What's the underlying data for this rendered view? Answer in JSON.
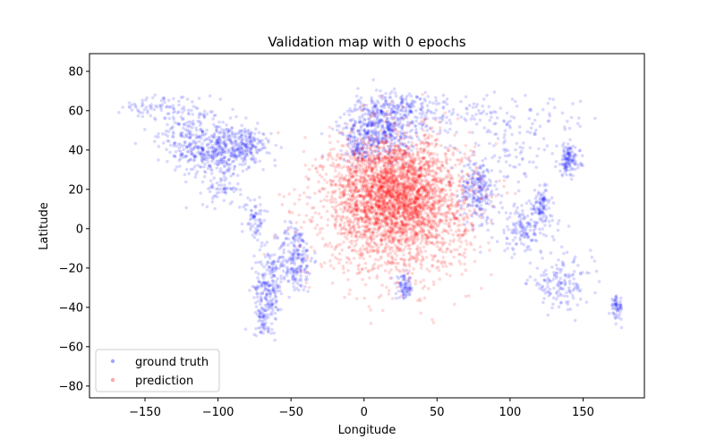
{
  "chart_data": {
    "type": "scatter",
    "title": "Validation map with 0 epochs",
    "xlabel": "Longitude",
    "ylabel": "Latitude",
    "xlim": [
      -188,
      192
    ],
    "ylim": [
      -86,
      89
    ],
    "xticks": [
      -150,
      -100,
      -50,
      0,
      50,
      100,
      150
    ],
    "yticks": [
      -80,
      -60,
      -40,
      -20,
      0,
      20,
      40,
      60,
      80
    ],
    "grid": false,
    "legend_position": "lower-left",
    "series": [
      {
        "name": "ground truth",
        "color": "#0000ff",
        "alpha": 0.15,
        "description_points": "approximate cluster representation of ground-truth locations (world landmasses)",
        "clusters": [
          {
            "cx": -100,
            "cy": 40,
            "sx": 14,
            "sy": 7,
            "n": 420
          },
          {
            "cx": -120,
            "cy": 50,
            "sx": 10,
            "sy": 8,
            "n": 150
          },
          {
            "cx": -145,
            "cy": 62,
            "sx": 10,
            "sy": 3,
            "n": 60
          },
          {
            "cx": -80,
            "cy": 42,
            "sx": 8,
            "sy": 4,
            "n": 120
          },
          {
            "cx": -98,
            "cy": 20,
            "sx": 6,
            "sy": 4,
            "n": 60
          },
          {
            "cx": -75,
            "cy": 5,
            "sx": 4,
            "sy": 6,
            "n": 70
          },
          {
            "cx": -47,
            "cy": -15,
            "sx": 6,
            "sy": 9,
            "n": 220
          },
          {
            "cx": -65,
            "cy": -30,
            "sx": 5,
            "sy": 10,
            "n": 220
          },
          {
            "cx": -70,
            "cy": -45,
            "sx": 2,
            "sy": 5,
            "n": 40
          },
          {
            "cx": 10,
            "cy": 50,
            "sx": 13,
            "sy": 7,
            "n": 450
          },
          {
            "cx": 20,
            "cy": 62,
            "sx": 12,
            "sy": 5,
            "n": 130
          },
          {
            "cx": 50,
            "cy": 60,
            "sx": 22,
            "sy": 4,
            "n": 100
          },
          {
            "cx": -5,
            "cy": 40,
            "sx": 5,
            "sy": 3,
            "n": 60
          },
          {
            "cx": 78,
            "cy": 20,
            "sx": 6,
            "sy": 8,
            "n": 230
          },
          {
            "cx": 110,
            "cy": 0,
            "sx": 10,
            "sy": 7,
            "n": 170
          },
          {
            "cx": 122,
            "cy": 12,
            "sx": 3,
            "sy": 5,
            "n": 80
          },
          {
            "cx": 140,
            "cy": 35,
            "sx": 4,
            "sy": 4,
            "n": 130
          },
          {
            "cx": 135,
            "cy": -28,
            "sx": 11,
            "sy": 6,
            "n": 150
          },
          {
            "cx": 173,
            "cy": -40,
            "sx": 2,
            "sy": 3,
            "n": 60
          },
          {
            "cx": 28,
            "cy": -30,
            "sx": 3,
            "sy": 3,
            "n": 80
          },
          {
            "cx": 95,
            "cy": 55,
            "sx": 35,
            "sy": 6,
            "n": 90
          },
          {
            "cx": 100,
            "cy": 40,
            "sx": 15,
            "sy": 8,
            "n": 70
          }
        ]
      },
      {
        "name": "prediction",
        "color": "#ff0000",
        "alpha": 0.15,
        "description_points": "approximate cluster representation of predicted locations",
        "clusters": [
          {
            "cx": 22,
            "cy": 12,
            "sx": 25,
            "sy": 17,
            "n": 2600
          },
          {
            "cx": 20,
            "cy": 22,
            "sx": 18,
            "sy": 12,
            "n": 900
          }
        ]
      }
    ]
  }
}
